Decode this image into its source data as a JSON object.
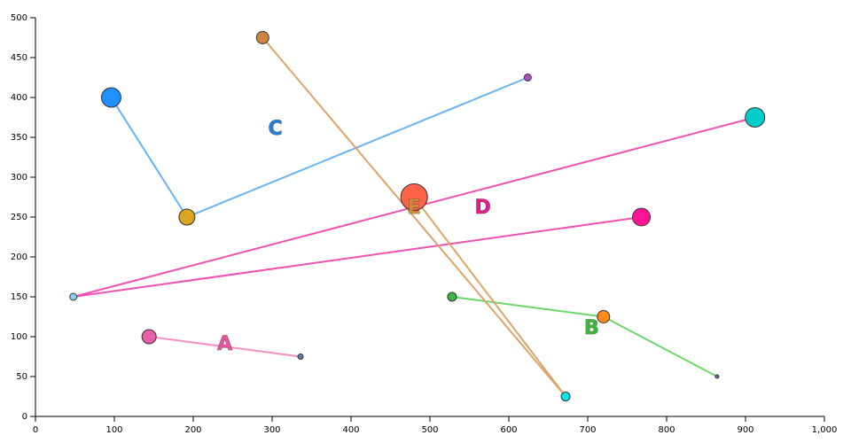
{
  "chart_data": {
    "type": "scatter",
    "title": "",
    "xlabel": "",
    "ylabel": "",
    "xlim": [
      0,
      1000
    ],
    "ylim": [
      0,
      500
    ],
    "x_ticks": [
      0,
      100,
      200,
      300,
      400,
      500,
      600,
      700,
      800,
      900,
      1000
    ],
    "x_tick_labels": [
      "0",
      "100",
      "200",
      "300",
      "400",
      "500",
      "600",
      "700",
      "800",
      "900",
      "1,000"
    ],
    "y_ticks": [
      0,
      50,
      100,
      150,
      200,
      250,
      300,
      350,
      400,
      450,
      500
    ],
    "y_tick_labels": [
      "0",
      "50",
      "100",
      "150",
      "200",
      "250",
      "300",
      "350",
      "400",
      "450",
      "500"
    ],
    "grid": false,
    "groups": [
      {
        "label": "A",
        "label_x": 240,
        "label_y": 90,
        "color": "#e0559b",
        "line_color": "#f48fc4",
        "points": [
          {
            "x": 144,
            "y": 100,
            "size": 8,
            "color": "#e860a8"
          },
          {
            "x": 336,
            "y": 75,
            "size": 3,
            "color": "#5b7fb5"
          }
        ]
      },
      {
        "label": "B",
        "label_x": 705,
        "label_y": 110,
        "color": "#3bb53b",
        "line_color": "#6cd86c",
        "points": [
          {
            "x": 528,
            "y": 150,
            "size": 5,
            "color": "#3cb83c"
          },
          {
            "x": 720,
            "y": 125,
            "size": 7,
            "color": "#ff8c1a"
          },
          {
            "x": 864,
            "y": 50,
            "size": 2,
            "color": "#7a66b0"
          }
        ]
      },
      {
        "label": "C",
        "label_x": 304,
        "label_y": 360,
        "color": "#2a7fd4",
        "line_color": "#66b2f5",
        "points": [
          {
            "x": 96,
            "y": 400,
            "size": 11,
            "color": "#1e90ff"
          },
          {
            "x": 192,
            "y": 250,
            "size": 9,
            "color": "#daa520"
          },
          {
            "x": 624,
            "y": 425,
            "size": 4,
            "color": "#b050c0"
          }
        ]
      },
      {
        "label": "D",
        "label_x": 567,
        "label_y": 261,
        "color": "#e0208a",
        "line_color": "#f050b0",
        "points": [
          {
            "x": 912,
            "y": 375,
            "size": 11,
            "color": "#00cccc"
          },
          {
            "x": 48,
            "y": 150,
            "size": 4,
            "color": "#87ceeb"
          },
          {
            "x": 768,
            "y": 250,
            "size": 10,
            "color": "#ff1493"
          }
        ]
      },
      {
        "label": "E",
        "label_x": 480,
        "label_y": 261,
        "color": "#d08a3a",
        "line_color": "#dca46a",
        "points": [
          {
            "x": 288,
            "y": 475,
            "size": 7,
            "color": "#cd853f"
          },
          {
            "x": 672,
            "y": 25,
            "size": 5,
            "color": "#00e5ee"
          },
          {
            "x": 480,
            "y": 275,
            "size": 15,
            "color": "#ff6347"
          }
        ]
      }
    ]
  }
}
